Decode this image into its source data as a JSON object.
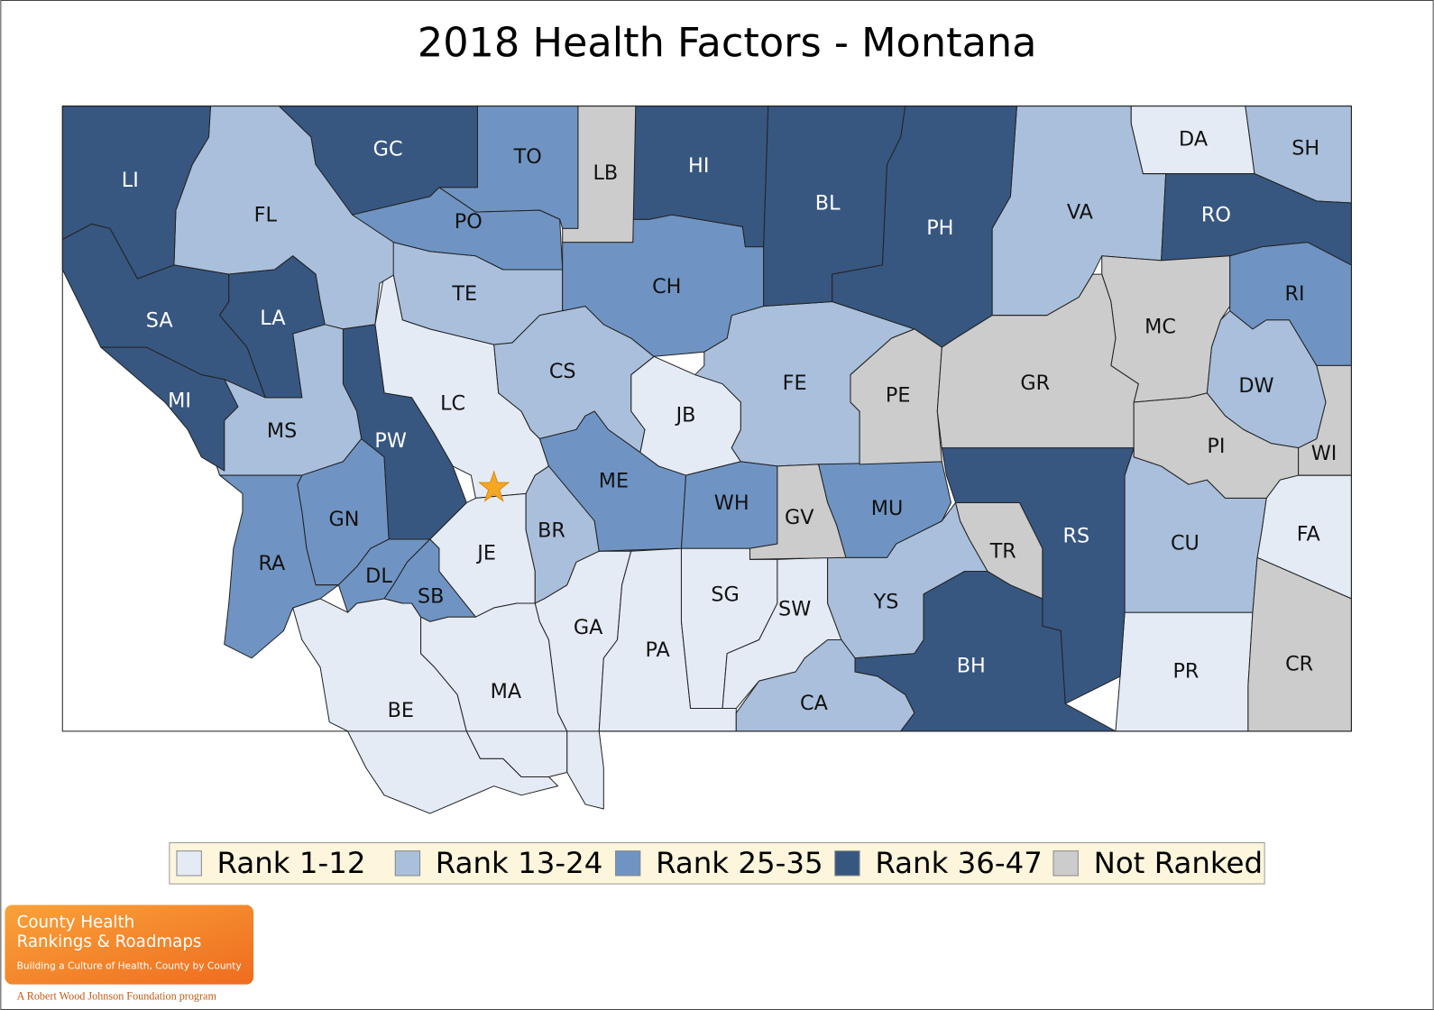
{
  "title": "2018 Health Factors - Montana",
  "legend": [
    {
      "label": "Rank 1-12",
      "color": "#e4ebf5",
      "counties": [
        "DA",
        "LC",
        "JB",
        "JE",
        "BE",
        "MA",
        "GA",
        "PA",
        "SG",
        "SW",
        "PR",
        "FA"
      ]
    },
    {
      "label": "Rank 13-24",
      "color": "#a9bfdc",
      "counties": [
        "FL",
        "TE",
        "CS",
        "MS",
        "BR",
        "FE",
        "VA",
        "SH",
        "DW",
        "CU",
        "YS",
        "CA"
      ]
    },
    {
      "label": "Rank 25-35",
      "color": "#6f94c3",
      "counties": [
        "TO",
        "PO",
        "CH",
        "GN",
        "RA",
        "DL",
        "SB",
        "ME",
        "WH",
        "MU",
        "RI"
      ]
    },
    {
      "label": "Rank 36-47",
      "color": "#375781",
      "counties": [
        "LI",
        "GC",
        "HI",
        "BL",
        "PH",
        "RO",
        "SA",
        "LA",
        "MI",
        "PW",
        "RS",
        "BH"
      ]
    },
    {
      "label": "Not Ranked",
      "color": "#cccccc",
      "counties": [
        "LB",
        "PE",
        "GV",
        "MC",
        "GR",
        "PI",
        "WI",
        "TR",
        "CR"
      ]
    }
  ],
  "logo": {
    "line1": "County Health",
    "line2": "Rankings & Roadmaps",
    "tagline": "Building a Culture of Health, County by County",
    "footer": "A Robert Wood Johnson Foundation program"
  }
}
